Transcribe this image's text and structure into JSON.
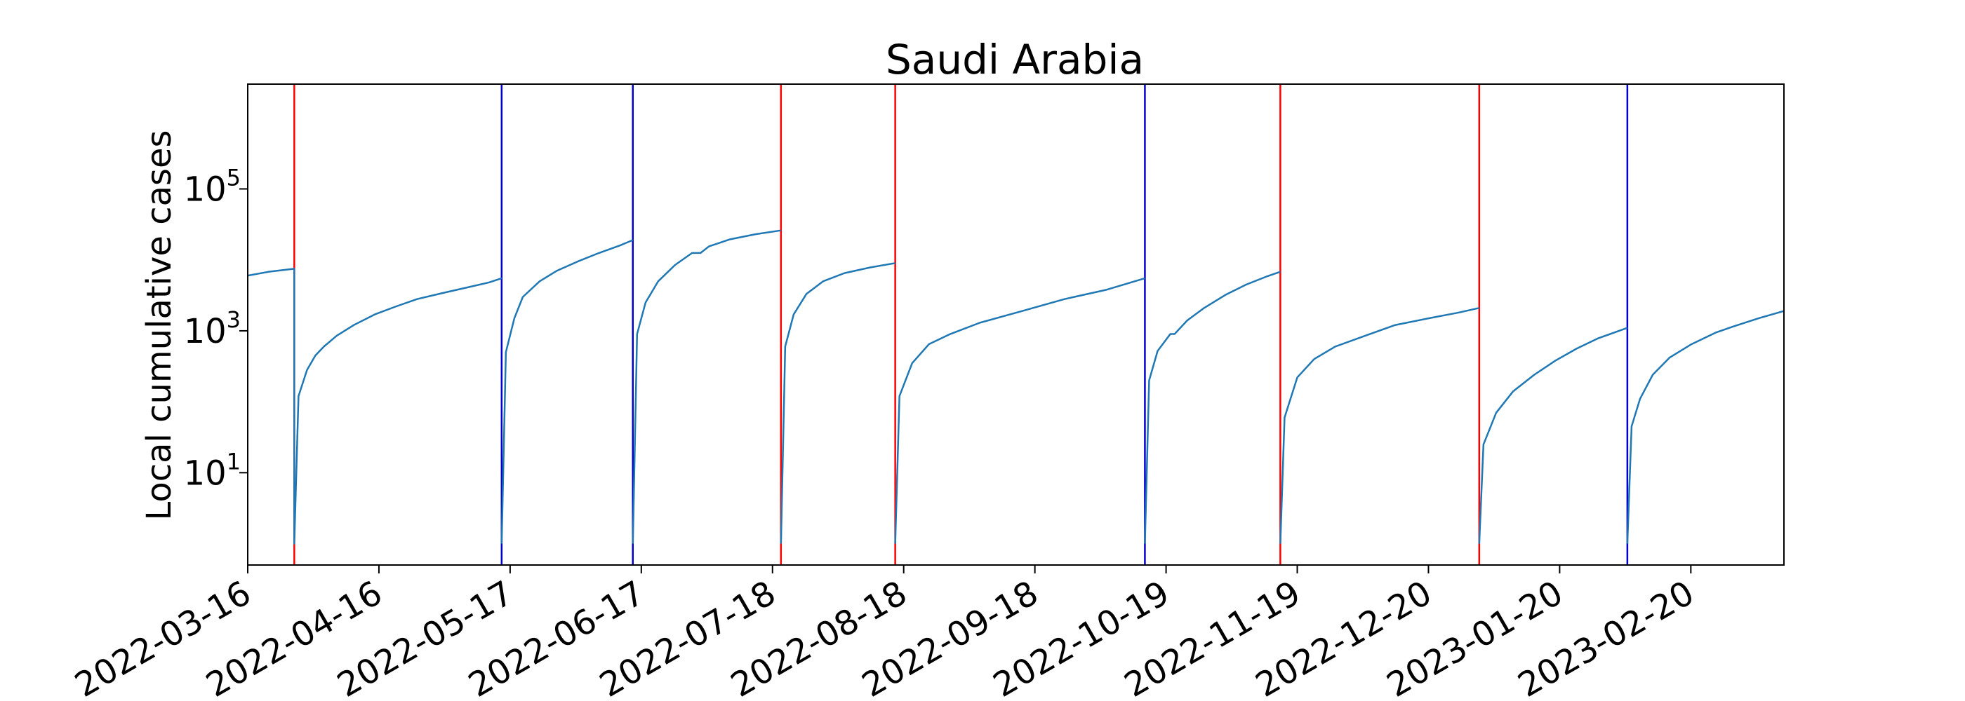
{
  "chart_data": {
    "type": "line",
    "title": "Saudi Arabia",
    "xlabel": "",
    "ylabel": "Local cumulative cases",
    "y_scale": "log",
    "ylim": [
      0.5,
      3000000
    ],
    "xlim": [
      "2022-03-16",
      "2023-03-14"
    ],
    "x_ticks": [
      "2022-03-16",
      "2022-04-16",
      "2022-05-17",
      "2022-06-17",
      "2022-07-18",
      "2022-08-18",
      "2022-09-18",
      "2022-10-19",
      "2022-11-19",
      "2022-12-20",
      "2023-01-20",
      "2023-02-20"
    ],
    "y_ticks": [
      {
        "base": "10",
        "exp": "1",
        "value": 10
      },
      {
        "base": "10",
        "exp": "3",
        "value": 1000
      },
      {
        "base": "10",
        "exp": "5",
        "value": 100000
      }
    ],
    "grid": false,
    "line_color": "#1f77b4",
    "vlines": [
      {
        "date": "2022-03-27",
        "color": "#ff0000"
      },
      {
        "date": "2022-05-15",
        "color": "#0000cc"
      },
      {
        "date": "2022-06-15",
        "color": "#0000cc"
      },
      {
        "date": "2022-07-20",
        "color": "#ff0000"
      },
      {
        "date": "2022-08-16",
        "color": "#ff0000"
      },
      {
        "date": "2022-10-14",
        "color": "#0000cc"
      },
      {
        "date": "2022-11-15",
        "color": "#ff0000"
      },
      {
        "date": "2023-01-01",
        "color": "#ff0000"
      },
      {
        "date": "2023-02-05",
        "color": "#0000cc"
      }
    ],
    "series": [
      {
        "points": [
          [
            "2022-03-16",
            6000
          ],
          [
            "2022-03-21",
            6800
          ],
          [
            "2022-03-27",
            7500
          ],
          [
            "2022-03-27",
            1
          ],
          [
            "2022-03-28",
            120
          ],
          [
            "2022-03-30",
            280
          ],
          [
            "2022-04-01",
            450
          ],
          [
            "2022-04-03",
            600
          ],
          [
            "2022-04-06",
            850
          ],
          [
            "2022-04-10",
            1200
          ],
          [
            "2022-04-15",
            1700
          ],
          [
            "2022-04-20",
            2200
          ],
          [
            "2022-04-25",
            2800
          ],
          [
            "2022-05-01",
            3400
          ],
          [
            "2022-05-07",
            4100
          ],
          [
            "2022-05-12",
            4800
          ],
          [
            "2022-05-15",
            5500
          ]
        ]
      },
      {
        "points": [
          [
            "2022-05-15",
            1
          ],
          [
            "2022-05-16",
            500
          ],
          [
            "2022-05-18",
            1500
          ],
          [
            "2022-05-20",
            3000
          ],
          [
            "2022-05-24",
            5000
          ],
          [
            "2022-05-28",
            7000
          ],
          [
            "2022-06-02",
            9500
          ],
          [
            "2022-06-07",
            12500
          ],
          [
            "2022-06-12",
            16000
          ],
          [
            "2022-06-15",
            19000
          ]
        ]
      },
      {
        "points": [
          [
            "2022-06-15",
            1
          ],
          [
            "2022-06-16",
            900
          ],
          [
            "2022-06-18",
            2500
          ],
          [
            "2022-06-21",
            5000
          ],
          [
            "2022-06-25",
            8500
          ],
          [
            "2022-06-29",
            12500
          ],
          [
            "2022-07-01",
            12500
          ],
          [
            "2022-07-03",
            15500
          ],
          [
            "2022-07-08",
            19500
          ],
          [
            "2022-07-14",
            23000
          ],
          [
            "2022-07-20",
            26000
          ]
        ]
      },
      {
        "points": [
          [
            "2022-07-20",
            1
          ],
          [
            "2022-07-21",
            600
          ],
          [
            "2022-07-23",
            1700
          ],
          [
            "2022-07-26",
            3300
          ],
          [
            "2022-07-30",
            5000
          ],
          [
            "2022-08-04",
            6500
          ],
          [
            "2022-08-10",
            7800
          ],
          [
            "2022-08-16",
            9000
          ]
        ]
      },
      {
        "points": [
          [
            "2022-08-16",
            1
          ],
          [
            "2022-08-17",
            120
          ],
          [
            "2022-08-20",
            350
          ],
          [
            "2022-08-24",
            650
          ],
          [
            "2022-08-29",
            900
          ],
          [
            "2022-09-05",
            1300
          ],
          [
            "2022-09-15",
            1900
          ],
          [
            "2022-09-25",
            2800
          ],
          [
            "2022-10-05",
            3800
          ],
          [
            "2022-10-14",
            5500
          ]
        ]
      },
      {
        "points": [
          [
            "2022-10-14",
            1
          ],
          [
            "2022-10-15",
            200
          ],
          [
            "2022-10-17",
            520
          ],
          [
            "2022-10-20",
            900
          ],
          [
            "2022-10-21",
            900
          ],
          [
            "2022-10-24",
            1400
          ],
          [
            "2022-10-28",
            2100
          ],
          [
            "2022-11-02",
            3200
          ],
          [
            "2022-11-07",
            4500
          ],
          [
            "2022-11-12",
            5900
          ],
          [
            "2022-11-15",
            6800
          ]
        ]
      },
      {
        "points": [
          [
            "2022-11-15",
            1
          ],
          [
            "2022-11-16",
            60
          ],
          [
            "2022-11-19",
            220
          ],
          [
            "2022-11-23",
            400
          ],
          [
            "2022-11-28",
            600
          ],
          [
            "2022-12-05",
            850
          ],
          [
            "2022-12-12",
            1200
          ],
          [
            "2022-12-20",
            1500
          ],
          [
            "2022-12-27",
            1800
          ],
          [
            "2023-01-01",
            2100
          ]
        ]
      },
      {
        "points": [
          [
            "2023-01-01",
            1
          ],
          [
            "2023-01-02",
            25
          ],
          [
            "2023-01-05",
            70
          ],
          [
            "2023-01-09",
            140
          ],
          [
            "2023-01-14",
            240
          ],
          [
            "2023-01-19",
            380
          ],
          [
            "2023-01-24",
            560
          ],
          [
            "2023-01-29",
            780
          ],
          [
            "2023-02-05",
            1100
          ]
        ]
      },
      {
        "points": [
          [
            "2023-02-05",
            1
          ],
          [
            "2023-02-06",
            45
          ],
          [
            "2023-02-08",
            110
          ],
          [
            "2023-02-11",
            240
          ],
          [
            "2023-02-15",
            420
          ],
          [
            "2023-02-20",
            640
          ],
          [
            "2023-02-26",
            950
          ],
          [
            "2023-03-02",
            1150
          ],
          [
            "2023-03-08",
            1500
          ],
          [
            "2023-03-14",
            1900
          ]
        ]
      }
    ]
  }
}
